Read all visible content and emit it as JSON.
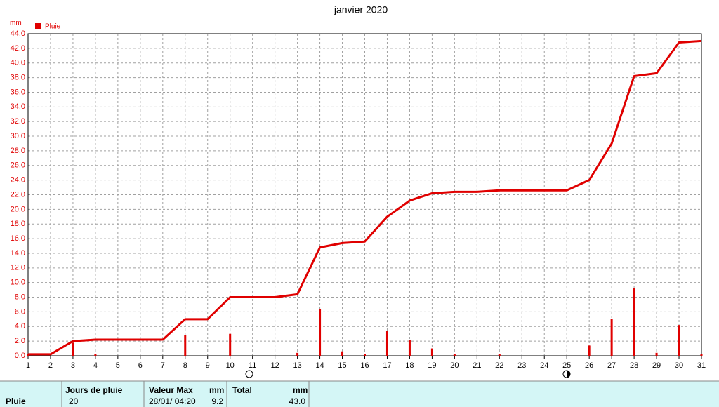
{
  "chart_data": {
    "type": "bar",
    "title": "janvier 2020",
    "y_unit": "mm",
    "x": [
      1,
      2,
      3,
      4,
      5,
      6,
      7,
      8,
      9,
      10,
      11,
      12,
      13,
      14,
      15,
      16,
      17,
      18,
      19,
      20,
      21,
      22,
      23,
      24,
      25,
      26,
      27,
      28,
      29,
      30,
      31
    ],
    "xlim": [
      1,
      31
    ],
    "xticks": [
      1,
      2,
      3,
      4,
      5,
      6,
      7,
      8,
      9,
      10,
      11,
      12,
      13,
      14,
      15,
      16,
      17,
      18,
      19,
      20,
      21,
      22,
      23,
      24,
      25,
      26,
      27,
      28,
      29,
      30,
      31
    ],
    "ylim": [
      0,
      44
    ],
    "yticks": [
      {
        "value": 0,
        "label": "0.0"
      },
      {
        "value": 2,
        "label": "2.0"
      },
      {
        "value": 4,
        "label": "4.0"
      },
      {
        "value": 6,
        "label": "6.0"
      },
      {
        "value": 8,
        "label": "8.0"
      },
      {
        "value": 10,
        "label": "10.0"
      },
      {
        "value": 12,
        "label": "12.0"
      },
      {
        "value": 14,
        "label": "14.0"
      },
      {
        "value": 16,
        "label": "16.0"
      },
      {
        "value": 18,
        "label": "18.0"
      },
      {
        "value": 20,
        "label": "20.0"
      },
      {
        "value": 22,
        "label": "22.0"
      },
      {
        "value": 24,
        "label": "24.0"
      },
      {
        "value": 26,
        "label": "26.0"
      },
      {
        "value": 28,
        "label": "28.0"
      },
      {
        "value": 30,
        "label": "30.0"
      },
      {
        "value": 32,
        "label": "32.0"
      },
      {
        "value": 34,
        "label": "34.0"
      },
      {
        "value": 36,
        "label": "36.0"
      },
      {
        "value": 38,
        "label": "38.0"
      },
      {
        "value": 40,
        "label": "40.0"
      },
      {
        "value": 42,
        "label": "42.0"
      },
      {
        "value": 44,
        "label": "44.0"
      }
    ],
    "grid": true,
    "series": [
      {
        "name": "Pluie",
        "type": "bar",
        "color": "#e00000",
        "values": [
          0.2,
          0,
          1.8,
          0.2,
          0,
          0,
          0,
          2.8,
          0,
          3.0,
          0,
          0,
          0.4,
          6.4,
          0.6,
          0.2,
          3.4,
          2.2,
          1.0,
          0.2,
          0,
          0.2,
          0,
          0,
          0,
          1.4,
          5.0,
          9.2,
          0.4,
          4.2,
          0.2
        ]
      },
      {
        "type": "line",
        "color": "#e00000",
        "values": [
          0.2,
          0.2,
          2.0,
          2.2,
          2.2,
          2.2,
          2.2,
          5.0,
          5.0,
          8.0,
          8.0,
          8.0,
          8.4,
          14.8,
          15.4,
          15.6,
          19.0,
          21.2,
          22.2,
          22.4,
          22.4,
          22.6,
          22.6,
          22.6,
          22.6,
          24.0,
          29.0,
          38.2,
          38.6,
          42.8,
          43.0
        ]
      }
    ]
  },
  "table": {
    "headers": [
      "Jours de pluie",
      "Valeur Max",
      "mm",
      "Total",
      "mm"
    ],
    "rows": [
      [
        "Pluie",
        "20",
        "28/01/ 04:20",
        "9.2",
        "43.0"
      ]
    ]
  }
}
